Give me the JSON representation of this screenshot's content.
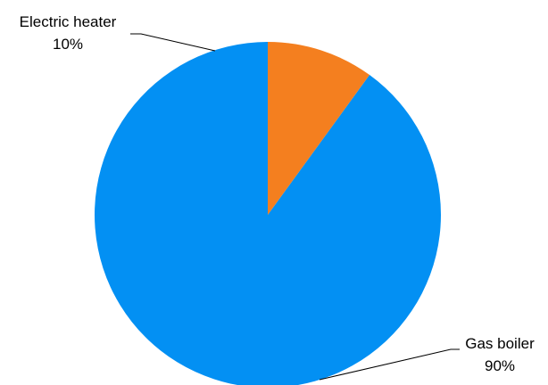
{
  "chart_data": {
    "type": "pie",
    "title": "",
    "start_angle_deg": 0,
    "direction": "counterclockwise",
    "legend": "none",
    "slices": [
      {
        "name": "Gas boiler",
        "value": 90,
        "label": "90%",
        "color": "#0390F3"
      },
      {
        "name": "Electric heater",
        "value": 10,
        "label": "10%",
        "color": "#F47F1F"
      }
    ]
  }
}
